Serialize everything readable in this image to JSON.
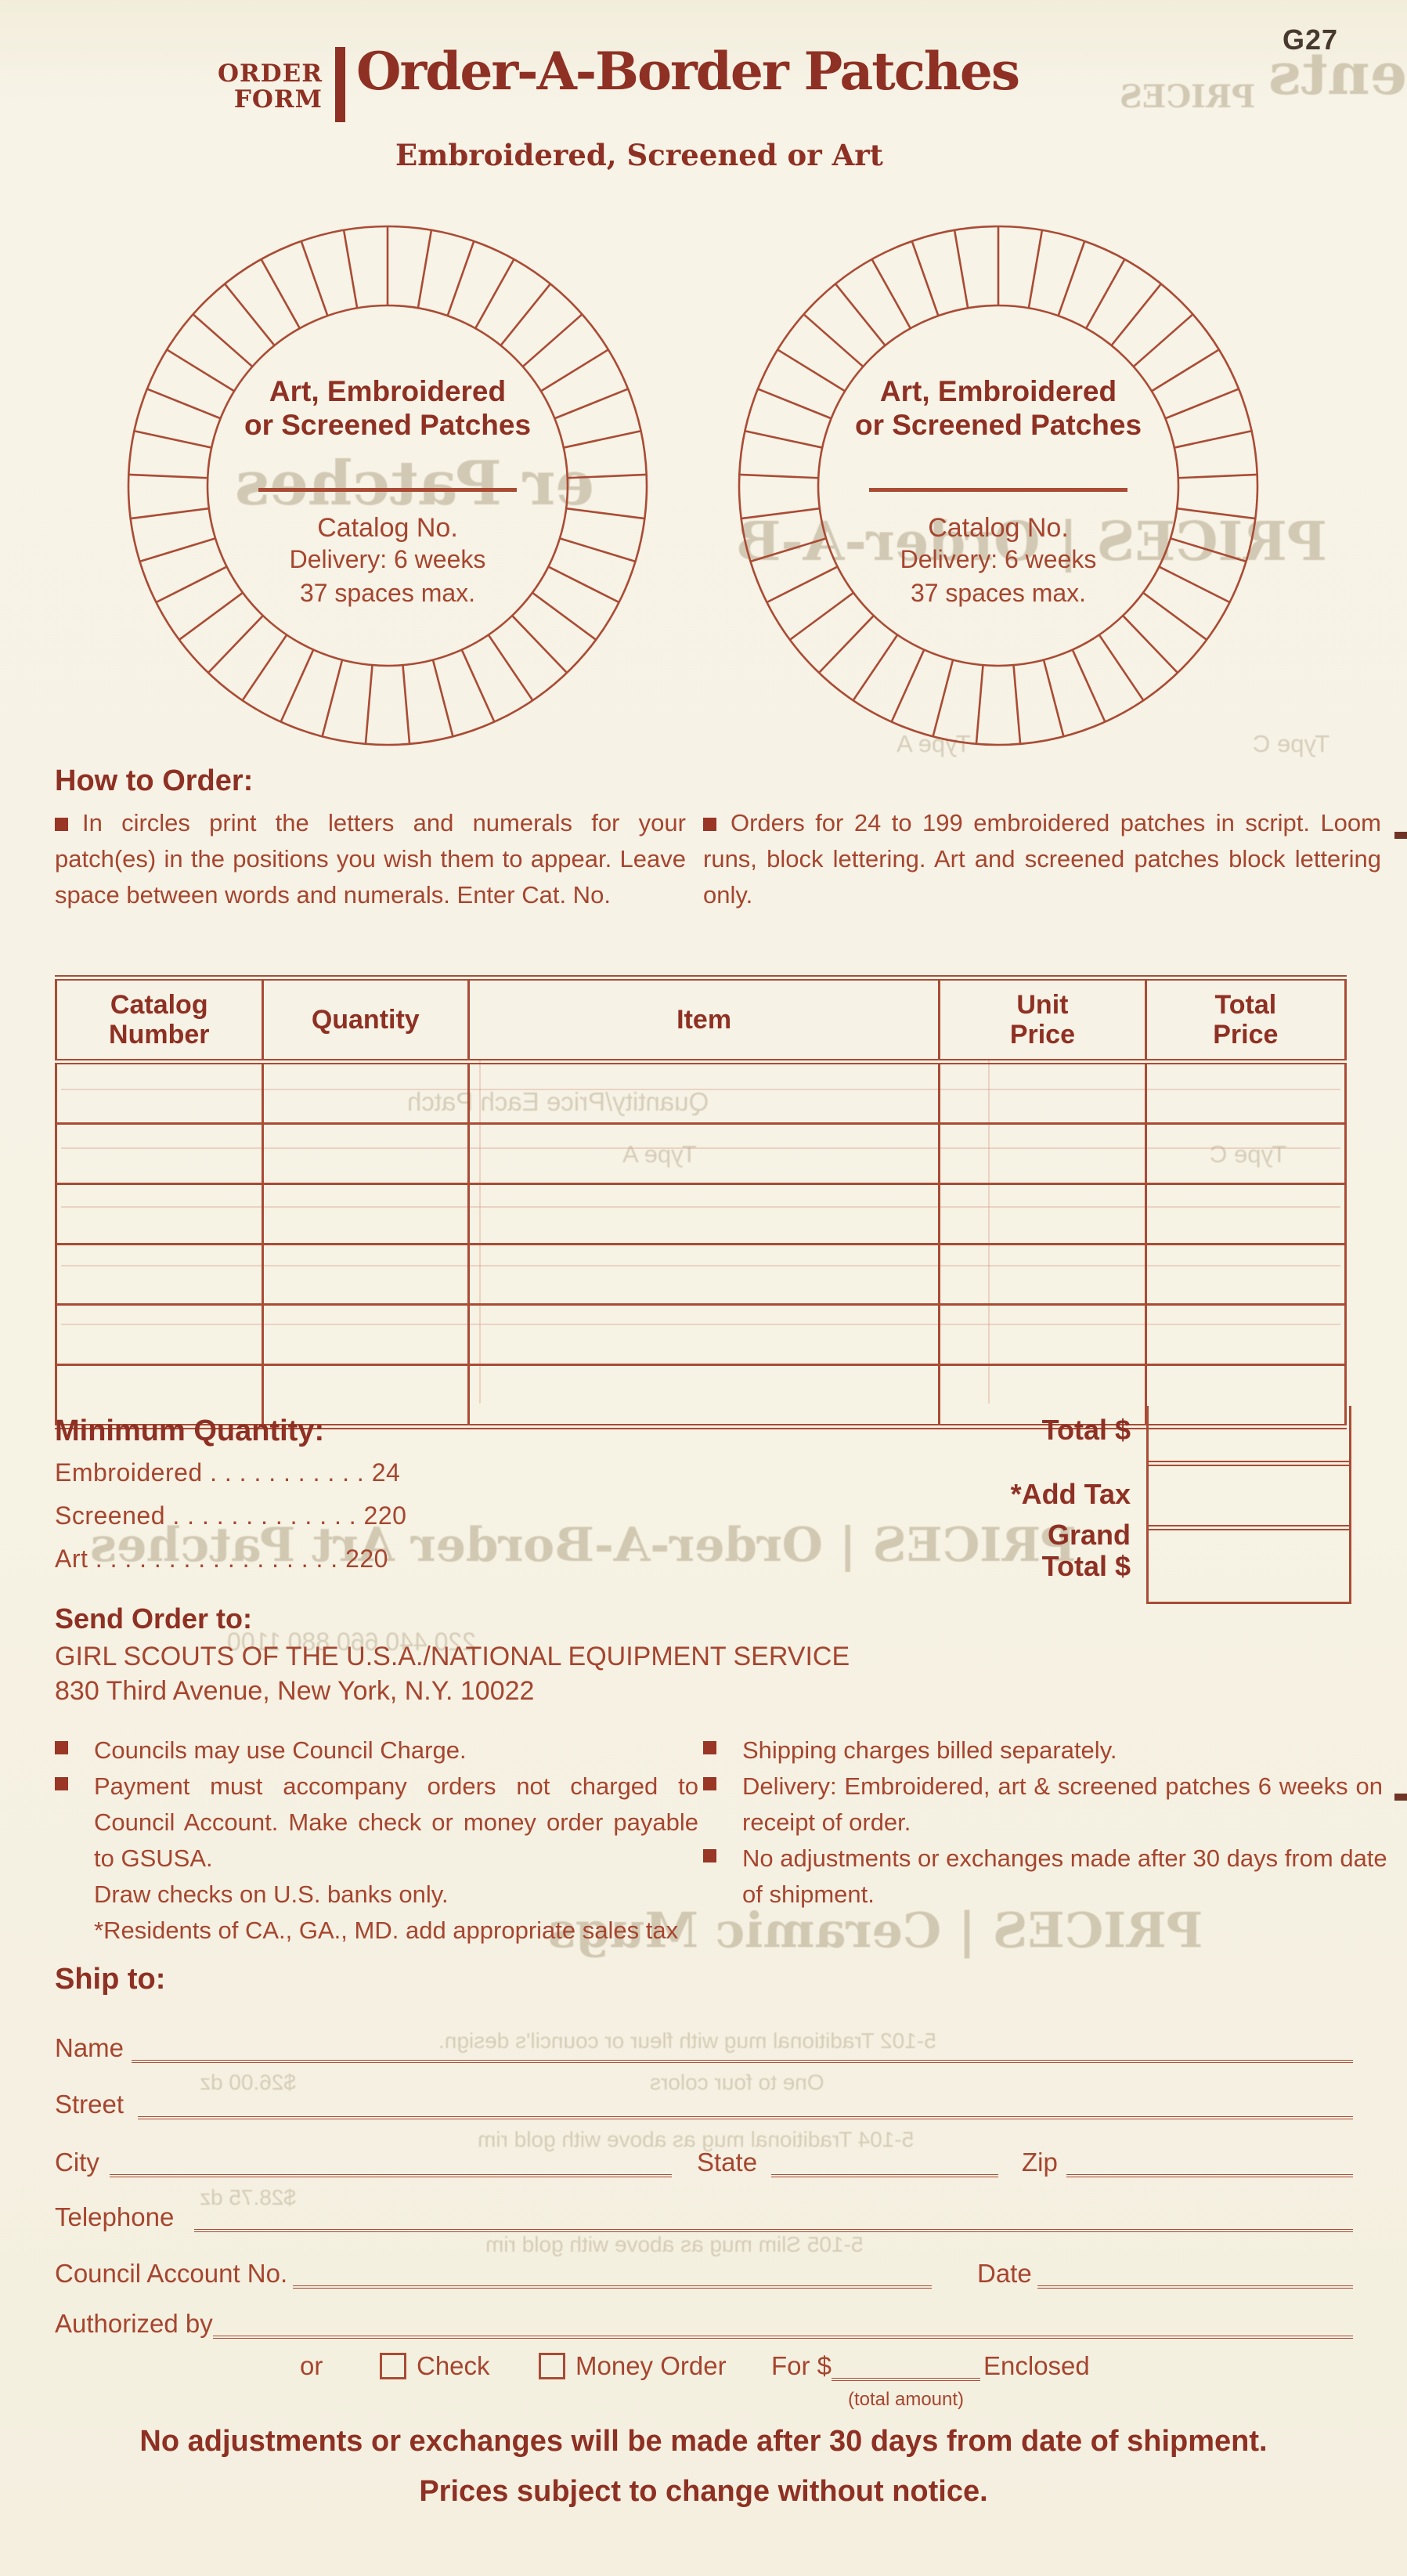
{
  "page": {
    "code": "G27"
  },
  "header": {
    "form_label_line1": "ORDER",
    "form_label_line2": "FORM",
    "title": "Order-A-Border Patches",
    "subtitle": "Embroidered, Screened or Art"
  },
  "circle": {
    "title_line1": "Art, Embroidered",
    "title_line2": "or Screened Patches",
    "catalog": "Catalog No.",
    "delivery": "Delivery: 6 weeks",
    "spaces": "37 spaces max."
  },
  "how_to_order": {
    "heading": "How to Order:",
    "left_bullet": "In circles print the letters and numerals for your patch(es) in the positions you wish them to appear. Leave space between words and numerals. Enter Cat. No.",
    "right_bullet": "Orders for 24 to 199 embroidered patches in script. Loom runs, block lettering. Art and screened patches block lettering only."
  },
  "order_table": {
    "headers": [
      {
        "l1": "Catalog",
        "l2": "Number"
      },
      {
        "l1": "Quantity",
        "l2": ""
      },
      {
        "l1": "Item",
        "l2": ""
      },
      {
        "l1": "Unit",
        "l2": "Price"
      },
      {
        "l1": "Total",
        "l2": "Price"
      }
    ],
    "rows": 6
  },
  "totals": {
    "total_label": "Total $",
    "tax_label": "*Add Tax",
    "grand_label_line1": "Grand",
    "grand_label_line2": "Total $"
  },
  "minimum_quantity": {
    "heading": "Minimum Quantity:",
    "item1": "Embroidered . . . . . . . . . . .  24",
    "item2": "Screened . . . . . . . . . . . . .  220",
    "item3": "Art . . . . . . . . . . . . . . . . .  220"
  },
  "send_order": {
    "heading": "Send Order to:",
    "line1": "GIRL SCOUTS OF THE U.S.A./NATIONAL EQUIPMENT SERVICE",
    "line2": "830 Third Avenue, New York, N.Y. 10022"
  },
  "terms": {
    "left1": "Councils may use Council Charge.",
    "left2": "Payment must accompany orders not charged to Council Account. Make check or money order payable to GSUSA.",
    "left3": "Draw checks on U.S. banks only.",
    "left4": "*Residents of CA., GA., MD. add appropriate sales tax",
    "right1": "Shipping charges billed separately.",
    "right2": "Delivery: Embroidered, art & screened patches 6 weeks on receipt of order.",
    "right3": "No adjustments or exchanges made after 30 days from date of shipment."
  },
  "ship_to": {
    "heading": "Ship to:",
    "name_label": "Name",
    "street_label": "Street",
    "city_label": "City",
    "state_label": "State",
    "zip_label": "Zip",
    "telephone_label": "Telephone",
    "council_label": "Council Account No.",
    "date_label": "Date",
    "authorized_label": "Authorized by",
    "or_label": "or",
    "check_label": "Check",
    "money_order_label": "Money Order",
    "for_label": "For $",
    "enclosed_label": "Enclosed",
    "total_amount_note": "(total amount)"
  },
  "footer": {
    "line1": "No adjustments or exchanges will be made after 30 days from date of shipment.",
    "line2": "Prices subject to change without notice."
  },
  "colors": {
    "ink": "#8e3023",
    "paper": "#f6f2e4",
    "line": "#aa4b35"
  },
  "bleed_through": {
    "b1": "PRICES",
    "b2": "ments",
    "b3": "PRICES | Order-A-B",
    "b4": "er Patches",
    "b5": "Quantity/Price Each Patch",
    "b6": "Type A",
    "b7": "Type C",
    "b8": "Type A",
    "b9": "Type C",
    "b10": "PRICES | Order-A-Border Art Patches",
    "b11": "220          440          660          880          1100",
    "b12": "PRICES | Ceramic Mugs",
    "b13": "5-102 Traditional mug with fleur or council's design.",
    "b14": "One to four colors",
    "b15": "$26.00 dz",
    "b16": "5-104 Traditional mug as above with gold rim",
    "b17": "$28.75 dz",
    "b18": "5-105 Slim mug as above with gold rim"
  }
}
